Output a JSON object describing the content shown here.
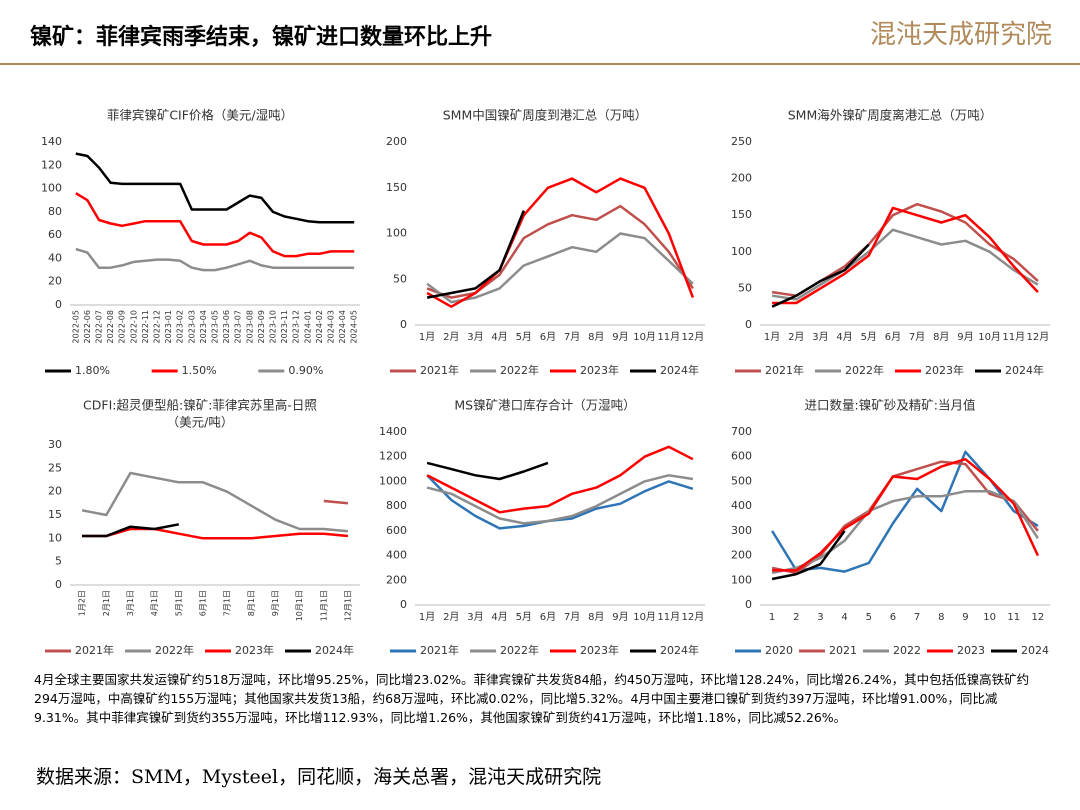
{
  "title": "镍矿：菲律宾雨季结束，镍矿进口数量环比上升",
  "logo": "混沌天成研究院",
  "paragraph": "4月全球主要国家共发运镍矿约518万湿吨，环比增95.25%，同比增23.02%。菲律宾镍矿共发货84船，约450万湿吨，环比增128.24%，同比增26.24%，其中包括低镍高铁矿约294万湿吨，中高镍矿约155万湿吨；其他国家共发货13船，约68万湿吨，环比减0.02%，同比增5.32%。4月中国主要港口镍矿到货约397万湿吨，环比增91.00%，同比减9.31%。其中菲律宾镍矿到货约355万湿吨，环比增112.93%，同比增1.26%，其他国家镍矿到货约41万湿吨，环比增1.18%，同比减52.26%。",
  "source": "数据来源：SMM，Mysteel，同花顺，海关总署，混沌天成研究院",
  "chart_data": [
    {
      "type": "line",
      "title": "菲律宾镍矿CIF价格（美元/湿吨）",
      "rotate_labels": true,
      "grid": false,
      "categories": [
        "2022-05",
        "2022-06",
        "2022-07",
        "2022-08",
        "2022-09",
        "2022-10",
        "2022-11",
        "2022-12",
        "2023-01",
        "2023-02",
        "2023-03",
        "2023-04",
        "2023-05",
        "2023-06",
        "2023-07",
        "2023-08",
        "2023-09",
        "2023-10",
        "2023-11",
        "2023-12",
        "2024-01",
        "2024-02",
        "2024-03",
        "2024-04",
        "2024-05"
      ],
      "ylim": [
        0,
        140
      ],
      "yticks": [
        0,
        20,
        40,
        60,
        80,
        100,
        120,
        140
      ],
      "series": [
        {
          "name": "1.80%",
          "color": "#000000",
          "values": [
            130,
            128,
            118,
            105,
            104,
            104,
            104,
            104,
            104,
            104,
            82,
            82,
            82,
            82,
            88,
            94,
            92,
            80,
            76,
            74,
            72,
            71,
            71,
            71,
            71
          ]
        },
        {
          "name": "1.50%",
          "color": "#ff0000",
          "values": [
            96,
            90,
            73,
            70,
            68,
            70,
            72,
            72,
            72,
            72,
            55,
            52,
            52,
            52,
            55,
            62,
            58,
            46,
            42,
            42,
            44,
            44,
            46,
            46,
            46
          ]
        },
        {
          "name": "0.90%",
          "color": "#8c8c8c",
          "values": [
            48,
            45,
            32,
            32,
            34,
            37,
            38,
            39,
            39,
            38,
            32,
            30,
            30,
            32,
            35,
            38,
            34,
            32,
            32,
            32,
            32,
            32,
            32,
            32,
            32
          ]
        }
      ]
    },
    {
      "type": "line",
      "title": "SMM中国镍矿周度到港汇总（万吨）",
      "grid": false,
      "categories": [
        "1月",
        "2月",
        "3月",
        "4月",
        "5月",
        "6月",
        "7月",
        "8月",
        "9月",
        "10月",
        "11月",
        "12月"
      ],
      "ylim": [
        0,
        200
      ],
      "yticks": [
        0,
        50,
        100,
        150,
        200
      ],
      "series": [
        {
          "name": "2021年",
          "color": "#c0504d",
          "values": [
            40,
            30,
            35,
            55,
            95,
            110,
            120,
            115,
            130,
            110,
            80,
            40
          ]
        },
        {
          "name": "2022年",
          "color": "#8c8c8c",
          "values": [
            45,
            25,
            30,
            40,
            65,
            75,
            85,
            80,
            100,
            95,
            70,
            45
          ]
        },
        {
          "name": "2023年",
          "color": "#ff0000",
          "values": [
            35,
            20,
            35,
            60,
            120,
            150,
            160,
            145,
            160,
            150,
            100,
            30
          ]
        },
        {
          "name": "2024年",
          "color": "#000000",
          "values": [
            30,
            35,
            40,
            60,
            125,
            null,
            null,
            null,
            null,
            null,
            null,
            null
          ]
        }
      ]
    },
    {
      "type": "line",
      "title": "SMM海外镍矿周度离港汇总（万吨）",
      "grid": false,
      "categories": [
        "1月",
        "2月",
        "3月",
        "4月",
        "5月",
        "6月",
        "7月",
        "8月",
        "9月",
        "10月",
        "11月",
        "12月"
      ],
      "ylim": [
        0,
        250
      ],
      "yticks": [
        0,
        50,
        100,
        150,
        200,
        250
      ],
      "series": [
        {
          "name": "2021年",
          "color": "#c0504d",
          "values": [
            45,
            40,
            60,
            80,
            110,
            150,
            165,
            155,
            140,
            110,
            90,
            60
          ]
        },
        {
          "name": "2022年",
          "color": "#8c8c8c",
          "values": [
            40,
            35,
            55,
            75,
            100,
            130,
            120,
            110,
            115,
            100,
            75,
            55
          ]
        },
        {
          "name": "2023年",
          "color": "#ff0000",
          "values": [
            30,
            30,
            50,
            70,
            95,
            160,
            150,
            140,
            150,
            120,
            80,
            45
          ]
        },
        {
          "name": "2024年",
          "color": "#000000",
          "values": [
            25,
            40,
            60,
            75,
            110,
            null,
            null,
            null,
            null,
            null,
            null,
            null
          ]
        }
      ]
    },
    {
      "type": "line",
      "title": "CDFI:超灵便型船:镍矿:菲律宾苏里高-日照",
      "subtitle": "（美元/吨）",
      "rotate_labels": true,
      "grid": false,
      "categories": [
        "1月2日",
        "2月1日",
        "3月1日",
        "4月1日",
        "5月1日",
        "6月1日",
        "7月1日",
        "8月1日",
        "9月1日",
        "10月1日",
        "11月1日",
        "12月1日"
      ],
      "ylim": [
        0,
        30
      ],
      "yticks": [
        0,
        5,
        10,
        15,
        20,
        25,
        30
      ],
      "series": [
        {
          "name": "2021年",
          "color": "#c0504d",
          "values": [
            null,
            null,
            null,
            null,
            null,
            null,
            null,
            null,
            null,
            null,
            18,
            17.5
          ]
        },
        {
          "name": "2022年",
          "color": "#8c8c8c",
          "values": [
            16,
            15,
            24,
            23,
            22,
            22,
            20,
            17,
            14,
            12,
            12,
            11.5
          ]
        },
        {
          "name": "2023年",
          "color": "#ff0000",
          "values": [
            10.5,
            10.5,
            12,
            12,
            11,
            10,
            10,
            10,
            10.5,
            11,
            11,
            10.5
          ]
        },
        {
          "name": "2024年",
          "color": "#000000",
          "values": [
            10.5,
            10.5,
            12.5,
            12,
            13,
            null,
            null,
            null,
            null,
            null,
            null,
            null
          ]
        }
      ]
    },
    {
      "type": "line",
      "title": "MS镍矿港口库存合计（万湿吨）",
      "grid": false,
      "categories": [
        "1月",
        "2月",
        "3月",
        "4月",
        "5月",
        "6月",
        "7月",
        "8月",
        "9月",
        "10月",
        "11月",
        "12月"
      ],
      "ylim": [
        0,
        1400
      ],
      "yticks": [
        0,
        200,
        400,
        600,
        800,
        1000,
        1200,
        1400
      ],
      "series": [
        {
          "name": "2021年",
          "color": "#2e75b6",
          "values": [
            1050,
            850,
            720,
            620,
            640,
            680,
            700,
            780,
            820,
            920,
            1000,
            940
          ]
        },
        {
          "name": "2022年",
          "color": "#8c8c8c",
          "values": [
            950,
            900,
            800,
            700,
            660,
            680,
            720,
            800,
            900,
            1000,
            1050,
            1020
          ]
        },
        {
          "name": "2023年",
          "color": "#ff0000",
          "values": [
            1050,
            950,
            850,
            750,
            780,
            800,
            900,
            950,
            1050,
            1200,
            1280,
            1180
          ]
        },
        {
          "name": "2024年",
          "color": "#000000",
          "values": [
            1150,
            1100,
            1050,
            1020,
            1080,
            1150,
            null,
            null,
            null,
            null,
            null,
            null
          ]
        }
      ]
    },
    {
      "type": "line",
      "title": "进口数量:镍矿砂及精矿:当月值",
      "grid": false,
      "categories": [
        "1",
        "2",
        "3",
        "4",
        "5",
        "6",
        "7",
        "8",
        "9",
        "10",
        "11",
        "12"
      ],
      "ylim": [
        0,
        700
      ],
      "yticks": [
        0,
        100,
        200,
        300,
        400,
        500,
        600,
        700
      ],
      "series": [
        {
          "name": "2020",
          "color": "#2e75b6",
          "values": [
            300,
            140,
            150,
            135,
            170,
            330,
            470,
            380,
            620,
            510,
            380,
            320
          ]
        },
        {
          "name": "2021",
          "color": "#c0504d",
          "values": [
            150,
            130,
            200,
            320,
            380,
            520,
            550,
            580,
            570,
            450,
            420,
            300
          ]
        },
        {
          "name": "2022",
          "color": "#8c8c8c",
          "values": [
            130,
            150,
            190,
            260,
            380,
            420,
            440,
            440,
            460,
            460,
            420,
            270
          ]
        },
        {
          "name": "2023",
          "color": "#ff0000",
          "values": [
            140,
            140,
            210,
            310,
            370,
            520,
            510,
            560,
            590,
            510,
            410,
            200
          ]
        },
        {
          "name": "2024",
          "color": "#000000",
          "values": [
            105,
            125,
            165,
            300,
            null,
            null,
            null,
            null,
            null,
            null,
            null,
            null
          ]
        }
      ]
    }
  ]
}
